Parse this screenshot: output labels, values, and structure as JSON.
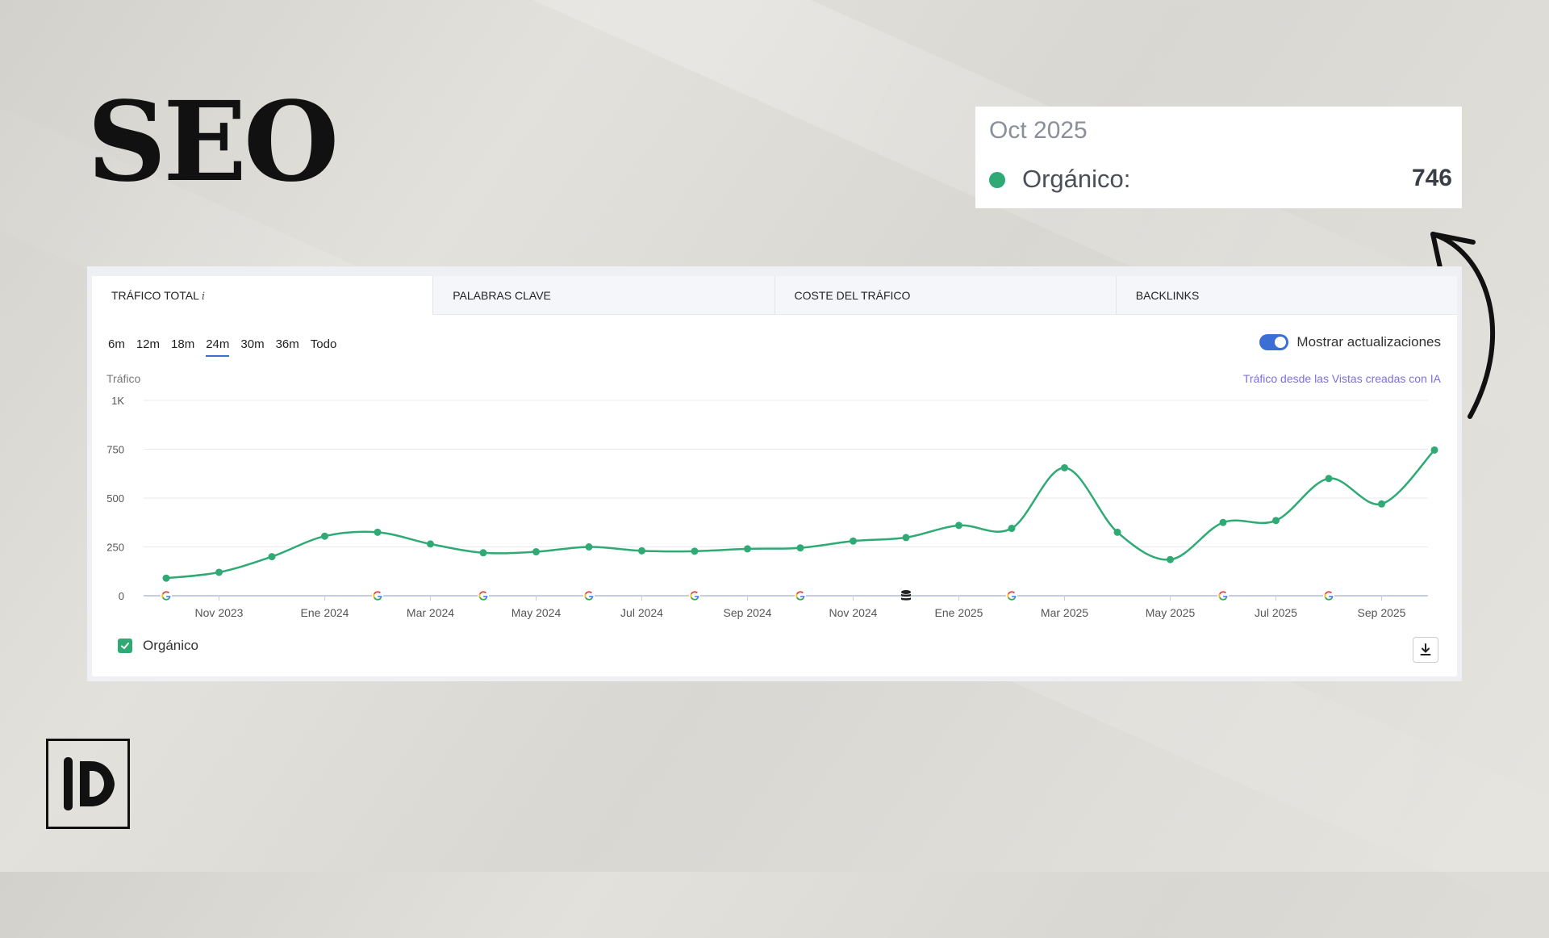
{
  "slide": {
    "title": "SEO"
  },
  "tooltip": {
    "date": "Oct 2025",
    "series": "Orgánico:",
    "value": "746",
    "dot_color": "#2faa74"
  },
  "panel": {
    "tabs": [
      {
        "label": "TRÁFICO TOTAL",
        "info": "i",
        "active": true
      },
      {
        "label": "PALABRAS CLAVE",
        "active": false
      },
      {
        "label": "COSTE DEL TRÁFICO",
        "active": false
      },
      {
        "label": "BACKLINKS",
        "active": false
      }
    ],
    "periods": [
      "6m",
      "12m",
      "18m",
      "24m",
      "30m",
      "36m",
      "Todo"
    ],
    "active_period": "24m",
    "toggle_label": "Mostrar actualizaciones",
    "toggle_on": true,
    "y_title": "Tráfico",
    "ai_link": "Tráfico desde las Vistas creadas con IA",
    "legend_label": "Orgánico",
    "legend_checked": true,
    "download_icon": "download-icon"
  },
  "chart_data": {
    "type": "line",
    "ylabel": "Tráfico",
    "ylim": [
      0,
      1000
    ],
    "yticks": [
      0,
      250,
      500,
      750,
      1000
    ],
    "ytick_labels": [
      "0",
      "250",
      "500",
      "750",
      "1K"
    ],
    "x_labels": [
      "Nov 2023",
      "Ene 2024",
      "Mar 2024",
      "May 2024",
      "Jul 2024",
      "Sep 2024",
      "Nov 2024",
      "Ene 2025",
      "Mar 2025",
      "May 2025",
      "Jul 2025",
      "Sep 2025"
    ],
    "x": [
      "Oct 2023",
      "Nov 2023",
      "Dic 2023",
      "Ene 2024",
      "Feb 2024",
      "Mar 2024",
      "Abr 2024",
      "May 2024",
      "Jun 2024",
      "Jul 2024",
      "Ago 2024",
      "Sep 2024",
      "Oct 2024",
      "Nov 2024",
      "Dic 2024",
      "Ene 2025",
      "Feb 2025",
      "Mar 2025",
      "Abr 2025",
      "May 2025",
      "Jun 2025",
      "Jul 2025",
      "Ago 2025",
      "Sep 2025",
      "Oct 2025"
    ],
    "series": [
      {
        "name": "Orgánico",
        "color": "#2faa74",
        "values": [
          90,
          120,
          200,
          305,
          325,
          265,
          220,
          225,
          250,
          230,
          228,
          240,
          245,
          280,
          298,
          360,
          345,
          655,
          325,
          185,
          375,
          385,
          600,
          470,
          746
        ]
      }
    ],
    "update_markers": [
      {
        "x": "Oct 2023",
        "icon": "google-icon"
      },
      {
        "x": "Feb 2024",
        "icon": "google-icon"
      },
      {
        "x": "Abr 2024",
        "icon": "google-icon"
      },
      {
        "x": "Jun 2024",
        "icon": "google-icon"
      },
      {
        "x": "Ago 2024",
        "icon": "google-icon"
      },
      {
        "x": "Oct 2024",
        "icon": "google-icon"
      },
      {
        "x": "Dic 2024",
        "icon": "database-icon"
      },
      {
        "x": "Feb 2025",
        "icon": "google-icon"
      },
      {
        "x": "Jun 2025",
        "icon": "google-icon"
      },
      {
        "x": "Ago 2025",
        "icon": "google-icon"
      }
    ],
    "grid": true,
    "legend": "bottom-left"
  }
}
